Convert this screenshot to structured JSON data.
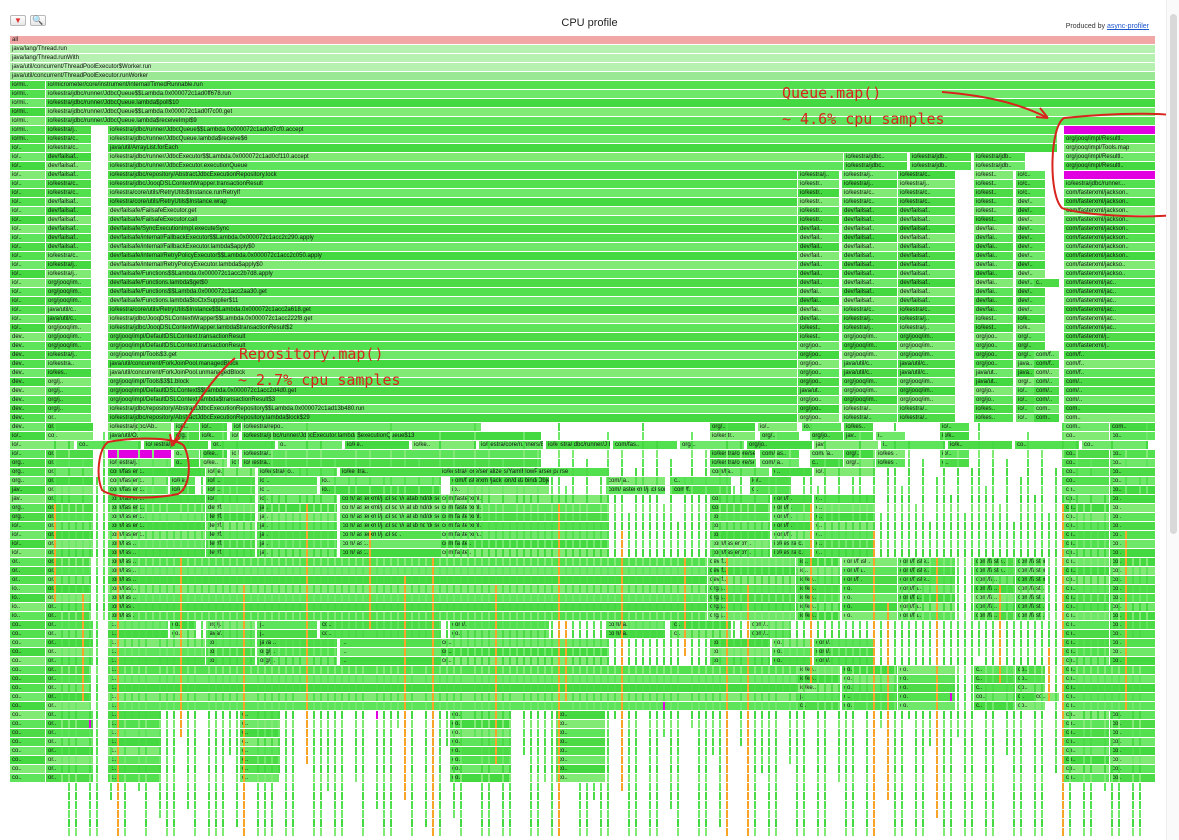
{
  "toolbar": {
    "reverse_glyph": "▼",
    "search_glyph": "🔍",
    "title": "CPU profile",
    "produced_by_prefix": "Produced by ",
    "produced_by_link": "async-profiler"
  },
  "colors": {
    "root": "#f1a7a5",
    "thread": "#b7f1b1",
    "java": "#53e04f",
    "highlight": "#e000e0",
    "native": "#f7a428",
    "annotation": "#d7241c"
  },
  "annotations": {
    "queue": {
      "line1": "Queue.map()",
      "line2": "~ 4.6% cpu samples"
    },
    "repository": {
      "line1": "Repository.map()",
      "line2": "~ 2.7% cpu samples"
    }
  },
  "frames": {
    "full_rows": [
      "all",
      "java/lang/Thread.run",
      "java/lang/Thread.runWith",
      "java/util/concurrent/ThreadPoolExecutor$Worker.run",
      "java/util/concurrent/ThreadPoolExecutor.runWorker"
    ],
    "row5": [
      "io/mi..",
      "io/micrometer/core/instrument/internal/TimedRunnable.run"
    ],
    "row6": [
      "io/mi..",
      "io/kestra/jdbc/runner/JdbcQueue$$Lambda.0x000072c1ad0ff678.run"
    ],
    "row7": [
      "io/mi..",
      "io/kestra/jdbc/runner/JdbcQueue.lambda$poll$10"
    ],
    "row8": [
      "io/mi..",
      "io/kestra/jdbc/runner/JdbcQueue$$Lambda.0x000072c1ad0f7c00.get"
    ],
    "row9": [
      "io/mi..",
      "io/kestra/jdbc/runner/JdbcQueue.lambda$receiveImpl$9"
    ],
    "row10": [
      "io/mi..",
      "io/kestra/j..",
      "io/kestra/jdbc/runner/JdbcQueue$$Lambda.0x000072c1ad0d7cf0.accept",
      "io/kestra/jdbc/runner..."
    ],
    "row11": [
      "io/mi..",
      "io/kestra/c..",
      "io/kestra/jdbc/runner/JdbcQueue.lambda$receive$6",
      "org/jooq/impl/Resultl.."
    ],
    "row12": [
      "io/..",
      "io/kestra/c..",
      "java/util/ArrayList.forEach",
      "org/jooq/impl/Tools.map"
    ],
    "row13": [
      "io/..",
      "dev/failsaf..",
      "io/kestra/jdbc/runner/JdbcExecutor$$Lambda.0x000072c1ad0cf110.accept",
      "io/kestra/jdbc..",
      "io/kestra/jdb..",
      "io/kestra/jdb..",
      "org/jooq/impl/Resultl.."
    ],
    "row14": [
      "io/..",
      "dev/failsaf..",
      "io/kestra/jdbc/runner/JdbcExecutor.executionQueue",
      "io/kestra/jdbc..",
      "io/kestra/jdb..",
      "io/kestra/jdb..",
      "org/jooq/impl/Resultl.."
    ],
    "row15": [
      "io/..",
      "dev/failsaf..",
      "io/kestra/jdbc/repository/AbstractJdbcExecutionRepository.lock",
      "io/kestra/j..",
      "io/kestra/j..",
      "io/kestra/c..",
      "io/kest..",
      "io/c..",
      "io/kestra/jdbc/runner.."
    ],
    "row16": [
      "io/..",
      "io/kestra/c..",
      "io/kestra/jdbc/JooqDSLContextWrapper.transactionResult",
      "io/kestr..",
      "io/kestra/j..",
      "io/kestra/j..",
      "io/kest..",
      "io/c..",
      "io/kestra/jdbc/runner..."
    ],
    "row17": [
      "io/..",
      "io/kestra/c..",
      "io/kestra/core/utils/RetryUtils$Instance.runRetryIf",
      "io/kestr..",
      "io/kestra/c..",
      "io/kestra/c..",
      "io/kest..",
      "io/c..",
      "com/fasterxml/jackson.."
    ],
    "row18": [
      "io/..",
      "dev/failsaf..",
      "io/kestra/core/utils/RetryUtils$Instance.wrap",
      "io/kestr..",
      "io/kestra/c..",
      "io/kestra/c..",
      "io/kest..",
      "dev/..",
      "com/fasterxml/jackson.."
    ],
    "row19": [
      "io/..",
      "dev/failsaf..",
      "dev/failsafe/FailsafeExecutor.get",
      "io/kestr..",
      "dev/failsaf..",
      "dev/failsaf..",
      "io/kest..",
      "dev/..",
      "com/fasterxml/jackson.."
    ],
    "row20": [
      "io/..",
      "dev/failsaf..",
      "dev/failsafe/FailsafeExecutor.call",
      "io/kestr..",
      "dev/failsaf..",
      "dev/failsaf..",
      "io/kest..",
      "dev/..",
      "com/fasterxml/jackson.."
    ],
    "row21": [
      "io/..",
      "dev/failsaf..",
      "dev/failsafe/SyncExecutionImpl.executeSync",
      "dev/fail..",
      "dev/failsaf..",
      "dev/failsaf..",
      "dev/fai..",
      "dev/..",
      "com/fasterxml/jackson.."
    ],
    "row22": [
      "io/..",
      "dev/failsaf..",
      "dev/failsafe/internal/FallbackExecutor$$Lambda.0x000072c1acc2c290.apply",
      "dev/fail..",
      "dev/failsaf..",
      "dev/failsaf..",
      "dev/fai..",
      "dev/..",
      "com/fasterxml/jackson.."
    ],
    "row23": [
      "io/..",
      "dev/failsaf..",
      "dev/failsafe/internal/FallbackExecutor.lambda$apply$0",
      "dev/fail..",
      "dev/failsaf..",
      "dev/failsaf..",
      "dev/fai..",
      "dev/..",
      "com/fasterxml/jackson.."
    ],
    "row24": [
      "io/..",
      "io/kestra/c..",
      "dev/failsafe/internal/RetryPolicyExecutor$$Lambda.0x000072c1acc2c050.apply",
      "dev/fail..",
      "dev/failsaf..",
      "dev/failsaf..",
      "dev/fai..",
      "dev/..",
      "com/fasterxml/jackson.."
    ],
    "row25": [
      "io/..",
      "io/kestra/j..",
      "dev/failsafe/internal/RetryPolicyExecutor.lambda$apply$0",
      "dev/fail..",
      "dev/failsaf..",
      "dev/failsaf..",
      "dev/fai..",
      "dev/..",
      "com/fasterxml/jackso.."
    ],
    "row26": [
      "io/..",
      "io/kestra/j..",
      "dev/failsafe/Functions$$Lambda.0x000072c1acc2b7d8.apply",
      "dev/fail..",
      "dev/failsaf..",
      "dev/failsaf..",
      "dev/fai..",
      "dev/..",
      "com/fasterxml/jackso.."
    ],
    "row27": [
      "io/..",
      "org/jooq/im..",
      "dev/failsafe/Functions.lambda$get$0",
      "dev/fail..",
      "dev/failsaf..",
      "dev/failsaf..",
      "dev/fai..",
      "dev/..",
      "c..",
      "com/fasterxml/jac.."
    ],
    "row28": [
      "io/..",
      "org/jooq/im..",
      "dev/failsafe/Functions$$Lambda.0x000072c1acc2aa30.get",
      "dev/fai..",
      "dev/failsaf..",
      "dev/failsaf..",
      "dev/fai..",
      "dev/..",
      "com/fasterxml/jac.."
    ],
    "row29": [
      "io/..",
      "org/jooq/im..",
      "dev/failsafe/Functions.lambda$toCtxSupplier$11",
      "dev/fai..",
      "dev/failsaf..",
      "dev/failsaf..",
      "dev/fai..",
      "dev/..",
      "com/fasterxml/jac.."
    ],
    "row30": [
      "io/..",
      "java/util/c..",
      "io/kestra/core/utils/RetryUtils$Instance$$Lambda.0x000072c1acc2a618.get",
      "dev/fai..",
      "io/kestra/c..",
      "io/kestra/c..",
      "dev/fai..",
      "dev/..",
      "com/fasterxml/jac.."
    ],
    "row31": [
      "io/..",
      "java/util/c..",
      "io/kestra/jdbc/JooqDSLContextWrapper$$Lambda.0x000072c1acc222f8.get",
      "dev/fai..",
      "io/kestra/j..",
      "io/kestra/j..",
      "io/kest..",
      "io/k..",
      "com/fasterxml/jac.."
    ],
    "row32": [
      "io/..",
      "org/jooq/im..",
      "io/kestra/jdbc/JooqDSLContextWrapper.lambda$transactionResult$2",
      "io/kest..",
      "io/kestra/j..",
      "io/kestra/j..",
      "io/kest..",
      "io/k..",
      "com/fasterxml/jac.."
    ],
    "row33": [
      "dev..",
      "org/jooq/im..",
      "org/jooq/impl/DefaultDSLContext.transactionResult",
      "io/kest..",
      "org/jooq/im..",
      "org/jooq/im..",
      "org/joo..",
      "org/..",
      "com/fasterxml/j.."
    ],
    "row34": [
      "dev..",
      "org/jooq/im..",
      "org/jooq/impl/DefaultDSLContext.transactionResult",
      "org/joo..",
      "org/jooq/im..",
      "org/jooq/im..",
      "org/joo..",
      "org/..",
      "com/fasterxml/j.."
    ],
    "row35": [
      "dev..",
      "io/kestra/j..",
      "org/jooq/impl/Tools$3.get",
      "org/joo..",
      "org/jooq/im..",
      "org/jooq/im..",
      "org/joo..",
      "org/..",
      "com/f..",
      "com/f.."
    ],
    "row36": [
      "dev..",
      "io/kestra..",
      "java/util/concurrent/ForkJoinPool.managedBlock",
      "org/joo..",
      "java/util/c..",
      "java/util/c..",
      "org/joo..",
      "java..",
      "com/f..",
      "com/f.."
    ],
    "row37": [
      "dev..",
      "io/kes..",
      "java/util/concurrent/ForkJoinPool.unmanagedBlock",
      "org/joo..",
      "java/util/c..",
      "java/util/c..",
      "java/ut..",
      "java..",
      "com/..",
      "com/f.."
    ],
    "row38": [
      "dev..",
      "org/j..",
      "org/jooq/impl/Tools$3$1.block",
      "org/joo..",
      "org/jooq/im..",
      "org/jooq/im..",
      "java/ut..",
      "org/..",
      "com/..",
      "com/.."
    ],
    "row39": [
      "dev..",
      "org/j..",
      "org/jooq/impl/DefaultDSLContext$$Lambda.0x000072c1acc2d4d0.get",
      "java/ut..",
      "org/jooq/im..",
      "org/jooq/im..",
      "org/jo..",
      "io/..",
      "com/..",
      "com/.."
    ],
    "row40": [
      "dev..",
      "org/j..",
      "org/jooq/impl/DefaultDSLContext.lambda$transactionResult$3",
      "org/joo..",
      "org/jooq/im..",
      "org/jooq/im..",
      "org/jo..",
      "io/..",
      "com/..",
      "com/.."
    ],
    "row41": [
      "dev..",
      "org/j..",
      "io/kestra/jdbc/repository/AbstractJdbcExecutionRepository$$Lambda.0x000072c1ad13b480.run",
      "org/joo..",
      "io/kestra/..",
      "io/kestra/..",
      "io/kes..",
      "io/..",
      "com..",
      "com.."
    ],
    "row42": [
      "dev..",
      "or..",
      "io/kestra/jdbc/repository/AbstractJdbcExecutionRepository.lambda$lock$29",
      "org/joo..",
      "io/kestra/..",
      "io/kestra/..",
      "io/kes..",
      "io/..",
      "com..",
      "com.."
    ],
    "row43": [
      "dev..",
      "or..",
      "io/kestra/jdbc/Ab..",
      "io/k..",
      "io/..",
      "io/kestra/jdbc/runner/JdbcExecutor$$Lambda.0x000072c1ad156230.apply",
      "io/kestra/repo..",
      "org/..",
      "io/..",
      "io..",
      "io/kes..",
      "io/..",
      "com..",
      "com.."
    ],
    "row44": [
      "io/..",
      "co..",
      "java/util/O..",
      "org..",
      "io/k..",
      "io/..",
      "io/kestra/jdbc/runner/JdbcExecutor.lambda$executionQueue$13",
      "io/kestr..",
      "org/..",
      "org/jo..",
      "jav..",
      "i..",
      "io/k..",
      "co..",
      "co.."
    ],
    "row45": [
      "io/..",
      "co..",
      "io/kestra/j..",
      "or..",
      "o..",
      "io/ke..",
      "io/ke..",
      "io/kestra/core/runners/ExecutorSe..",
      "io/kestra/jdbc/runner/JdbcExecutor.transform",
      "com/fas..",
      "org/..",
      "org/jo..",
      "jav..",
      "i..",
      "io/k..",
      "co..",
      "co.."
    ],
    "row46": [
      "io/..",
      "or..",
      "io/kestra/..",
      "o..",
      "io/ke..",
      "io/kestra/co..",
      "io/kestra/..",
      "io/kestra/core/services/PluginDefaultService.injectDefaults",
      "com/fas..",
      "com/fa..",
      "org/..",
      "io/kes..",
      "io/..",
      "co..",
      "co.."
    ],
    "row47": [
      "org..",
      "or..",
      "io/kestra/j..",
      "o..",
      "io/ke..",
      "io/kestra/co..",
      "io/kestra..",
      "io/kestra/core/services/PluginDefaultService.injectDefaults",
      "com/fa..",
      "c..",
      "org/..",
      "io/kes..",
      "o..",
      "co..",
      "co.."
    ],
    "row48": [
      "org..",
      "or..",
      "com/fasterx..",
      "io/ke..",
      "io/kestra/co..",
      "io/kestra..",
      "io/kestra/core/serializers/YamlFlowParser.parse",
      "com/fa..",
      "c..",
      "io/..",
      "co..",
      "co.."
    ],
    "row49": [
      "org..",
      "or..",
      "com/fasterx..",
      "io/ke..",
      "io/k..",
      "io/..",
      "io..",
      "com/fasterxml/jackson/databind/ObjectMapper.convertValue",
      "com/fa..",
      "c..",
      "io/..",
      "co..",
      "co.."
    ],
    "row50": [
      "jav..",
      "or..",
      "com/fasterx..",
      "io/k..",
      "io/k..",
      "io/..",
      "io..",
      "io..",
      "com/fasterxml/jackson/databind/ObjectMapper._convert",
      "com/f..",
      "c..",
      "co..",
      "co.."
    ],
    "row51": [
      "jav..",
      "or..",
      "com/fasterx..",
      "io/..",
      "io..",
      "com/fasterxml/jackson/databind/dese..",
      "com/fasterxml..",
      "co..",
      "com/f..",
      "c..",
      "co..",
      "co.."
    ],
    "row52": [
      "org..",
      "or..",
      "com/fasterx..",
      "dev/f..",
      "ja..",
      "com/fasterxml/jackson/databind/dese..",
      "com/fasterxml..",
      "co..",
      "com/f..",
      "c..",
      "co..",
      "co.."
    ],
    "row53": [
      "org..",
      "or..",
      "com/fasterx..",
      "dev/f..",
      "ja..",
      "com/fasterxml/jackson/databind/dese..",
      "com/fasterxml..",
      "co..",
      "com/f..",
      "c..",
      "co..",
      "co.."
    ],
    "row54": [
      "io/..",
      "or..",
      "com/fasterx..",
      "dev/f..",
      "ja..",
      "com/fasterxml/jackson/databind/dese..",
      "com/fasterxml..",
      "co..",
      "com/f..",
      "c..",
      "co..",
      "co.."
    ],
    "row55": [
      "io/..",
      "or..",
      "com/fasterx..",
      "dev/f..",
      "ja..",
      "com/fasterxml/jackso..",
      "com/fasterxm..",
      "co..",
      "com/f..",
      "c..",
      "co..",
      "co.."
    ],
    "row56": [
      "io/..",
      "or..",
      "com/fast..",
      "dev/f..",
      "ja..",
      "com/fast..",
      "com/faste..",
      "com/fasterxm..",
      "io/kestra/c..",
      "c..",
      "co..",
      "co.."
    ],
    "row57": [
      "io/..",
      "or..",
      "com/fast..",
      "dev/f..",
      "ja..",
      "com/fast..",
      "com/faste..",
      "com/fasterxm..",
      "io/kestra/c..",
      "c..",
      "co..",
      "co.."
    ],
    "row58": [
      "or..",
      "or..",
      "com/fast..",
      "dev/f..",
      "io..",
      "com/fast..",
      "com/faste..",
      "com/faste..",
      "com/faster..",
      "co..",
      "co.."
    ],
    "row59": [
      "or..",
      "or..",
      "com/fast..",
      "dev/f..",
      "io..",
      "com/fa..",
      "com/faste..",
      "com/faste..",
      "com/faster..",
      "co..",
      "co.."
    ],
    "row60": [
      "or..",
      "or..",
      "com/fast..",
      "dev/f..",
      "io/ke..",
      "com/f..",
      "com/faste..",
      "com/fa..",
      "com/faster..",
      "co..",
      "co.."
    ],
    "row61": [
      "io..",
      "or..",
      "com/fast..",
      "org/j..",
      "io/ke..",
      "co..",
      "com/fa..",
      "com/fa..",
      "com/fast..",
      "co..",
      "co.."
    ],
    "row62": [
      "io..",
      "or..",
      "com/fast..",
      "org/j..",
      "io/ke..",
      "co..",
      "com/fa..",
      "com/fa..",
      "com/fast..",
      "co..",
      "co.."
    ],
    "row63": [
      "io..",
      "or..",
      "com/fas..",
      "org/j..",
      "io/ke..",
      "co..",
      "com/fa..",
      "com/fa..",
      "com/fast..",
      "co..",
      "co.."
    ],
    "row64": [
      "io..",
      "or..",
      "com/fas..",
      "org/j..",
      "io/ke..",
      "co..",
      "com/fa..",
      "com/fa..",
      "com/fast..",
      "co..",
      "co.."
    ],
    "row65": [
      "co..",
      "or..",
      "c..",
      "co..",
      "org/j..",
      "j..",
      "co..",
      "com/..",
      "com/fa..",
      "c..",
      "com/..",
      "co..",
      "co.."
    ],
    "row66": [
      "co..",
      "or..",
      "c..",
      "co..",
      "java/..",
      "j..",
      "co..",
      "co..",
      "com/fa..",
      "c..",
      "com/..",
      "co..",
      "co.."
    ],
    "row67": [
      "co..",
      "or..",
      "c..",
      "co..",
      "java/..",
      "j..",
      "co..",
      "co..",
      "co..",
      "com/..",
      "co..",
      "co.."
    ],
    "row68": [
      "co..",
      "or..",
      "c..",
      "co..",
      "org/j..",
      "j..",
      "co..",
      "co..",
      "co..",
      "com/..",
      "co..",
      "co.."
    ],
    "row69": [
      "co..",
      "or..",
      "c..",
      "co..",
      "org/j..",
      "i..",
      "co..",
      "co..",
      "co..",
      "com/..",
      "co..",
      "co.."
    ],
    "row70": [
      "co..",
      "or..",
      "c..",
      "io/ke..",
      "co..",
      "co..",
      "c..",
      "co..",
      "co.."
    ],
    "row71": [
      "co..",
      "or..",
      "c..",
      "io/ke..",
      "co..",
      "co..",
      "c..",
      "co..",
      "co.."
    ],
    "row72": [
      "co..",
      "or..",
      "c..",
      "io/ke..",
      "co..",
      "co..",
      "c..",
      "co..",
      "co.."
    ],
    "row73": [
      "co..",
      "or..",
      "c..",
      "j..",
      "o..",
      "co..",
      "co..",
      "c..",
      "co..",
      "co.."
    ],
    "row74": [
      "co..",
      "or..",
      "c..",
      "c..",
      "co..",
      "co..",
      "c..",
      "co..",
      "co.."
    ],
    "row75": [
      "co..",
      "or..",
      "c..",
      "c..",
      "co..",
      "co..",
      "co..",
      "co.."
    ],
    "row76": [
      "co..",
      "or..",
      "c..",
      "c..",
      "co..",
      "co..",
      "co..",
      "co.."
    ],
    "row77": [
      "co..",
      "or..",
      "c..",
      "c..",
      "co..",
      "co..",
      "co..",
      "co.."
    ],
    "row78": [
      "co..",
      "or..",
      "c..",
      "c..",
      "co..",
      "co..",
      "co..",
      "co.."
    ],
    "row79": [
      "co..",
      "or..",
      "c..",
      "c..",
      "co..",
      "co..",
      "co..",
      "co.."
    ],
    "row80": [
      "co..",
      "or..",
      "c..",
      "c..",
      "co..",
      "co..",
      "co..",
      "co.."
    ],
    "row81": [
      "co..",
      "or..",
      "c..",
      "c..",
      "co..",
      "co..",
      "co..",
      "co.."
    ],
    "row82": [
      "co..",
      "or..",
      "c..",
      "c..",
      "co..",
      "co..",
      "co..",
      "co.."
    ]
  }
}
